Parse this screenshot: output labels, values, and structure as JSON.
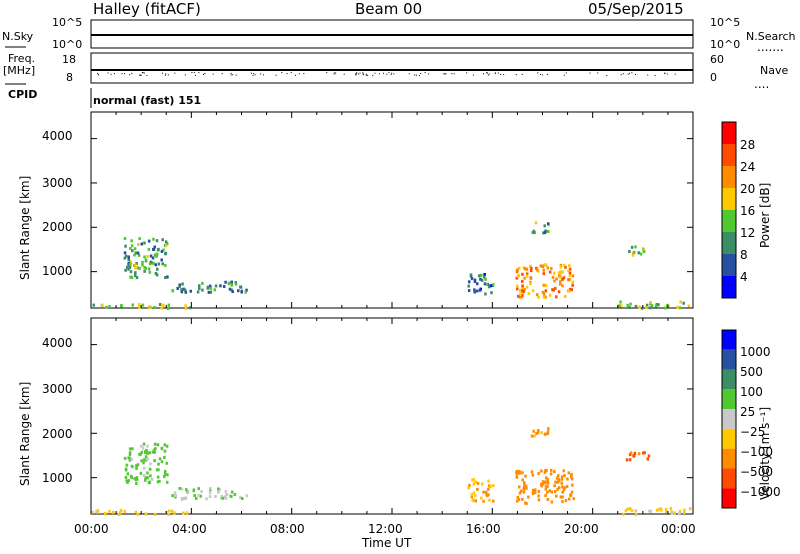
{
  "header": {
    "station": "Halley (fitACF)",
    "beam": "Beam 00",
    "date": "05/Sep/2015"
  },
  "top_panels": {
    "nsky_label": "N.Sky",
    "nsky_ticks": [
      "10^5",
      "10^0"
    ],
    "nsearch_label": "N.Search",
    "nsearch_ticks": [
      "10^5",
      "10^0"
    ],
    "freq_label_1": "Freq.",
    "freq_label_2": "[MHz]",
    "freq_ticks": [
      "18",
      "8"
    ],
    "nave_label": "Nave",
    "nave_ticks": [
      "60",
      "0"
    ],
    "cpid_label": "CPID",
    "cpid_value": "normal (fast) 151"
  },
  "axes": {
    "ylabel": "Slant Range [km]",
    "xlabel": "Time UT",
    "y_ticks": [
      "4000",
      "3000",
      "2000",
      "1000"
    ],
    "x_ticks": [
      "00:00",
      "04:00",
      "08:00",
      "12:00",
      "16:00",
      "20:00",
      "00:00"
    ]
  },
  "colorbars": {
    "power": {
      "label": "Power [dB]",
      "ticks": [
        "28",
        "24",
        "20",
        "16",
        "12",
        "8",
        "4"
      ],
      "colors": [
        "#ff0000",
        "#ff4b00",
        "#ff8c00",
        "#ffc800",
        "#50c832",
        "#3c8c64",
        "#2850a0",
        "#0000ff"
      ]
    },
    "velocity": {
      "label": "Velocity [m s⁻¹]",
      "ticks": [
        "1000",
        "500",
        "100",
        "25",
        "−25",
        "−100",
        "−500",
        "−1000"
      ],
      "colors": [
        "#0000ff",
        "#2850a0",
        "#3c8c64",
        "#50c832",
        "#c8c8c8",
        "#ffc800",
        "#ff8c00",
        "#ff4b00",
        "#ff0000"
      ]
    }
  },
  "chart_data": [
    {
      "type": "heatmap",
      "title": "Power [dB]",
      "xlabel": "Time UT",
      "ylabel": "Slant Range [km]",
      "xlim_hours": [
        0,
        24
      ],
      "ylim_km": [
        180,
        4600
      ],
      "echo_regions": [
        {
          "t0": 1.3,
          "t1": 3.0,
          "r0": 900,
          "r1": 1800,
          "value": 12
        },
        {
          "t0": 3.2,
          "t1": 6.2,
          "r0": 550,
          "r1": 800,
          "value": 10
        },
        {
          "t0": 0.0,
          "t1": 4.0,
          "r0": 200,
          "r1": 300,
          "value": 14
        },
        {
          "t0": 15.0,
          "t1": 16.0,
          "r0": 500,
          "r1": 1000,
          "value": 8
        },
        {
          "t0": 16.9,
          "t1": 19.2,
          "r0": 450,
          "r1": 1200,
          "value": 22
        },
        {
          "t0": 17.5,
          "t1": 18.2,
          "r0": 1900,
          "r1": 2150,
          "value": 12
        },
        {
          "t0": 21.3,
          "t1": 22.3,
          "r0": 1400,
          "r1": 1600,
          "value": 16
        },
        {
          "t0": 21.0,
          "t1": 24.0,
          "r0": 200,
          "r1": 350,
          "value": 14
        }
      ]
    },
    {
      "type": "heatmap",
      "title": "Velocity [m s⁻¹]",
      "xlabel": "Time UT",
      "ylabel": "Slant Range [km]",
      "xlim_hours": [
        0,
        24
      ],
      "ylim_km": [
        180,
        4600
      ],
      "echo_regions": [
        {
          "t0": 1.3,
          "t1": 3.0,
          "r0": 900,
          "r1": 1800,
          "value": 50
        },
        {
          "t0": 3.2,
          "t1": 6.2,
          "r0": 550,
          "r1": 800,
          "value": 20
        },
        {
          "t0": 0.0,
          "t1": 4.0,
          "r0": 200,
          "r1": 300,
          "value": -60
        },
        {
          "t0": 15.0,
          "t1": 16.0,
          "r0": 500,
          "r1": 1000,
          "value": -100
        },
        {
          "t0": 16.9,
          "t1": 19.2,
          "r0": 450,
          "r1": 1200,
          "value": -300
        },
        {
          "t0": 17.5,
          "t1": 18.2,
          "r0": 1900,
          "r1": 2150,
          "value": -150
        },
        {
          "t0": 21.3,
          "t1": 22.3,
          "r0": 1400,
          "r1": 1600,
          "value": -600
        },
        {
          "t0": 21.0,
          "t1": 24.0,
          "r0": 200,
          "r1": 350,
          "value": -50
        }
      ]
    }
  ]
}
